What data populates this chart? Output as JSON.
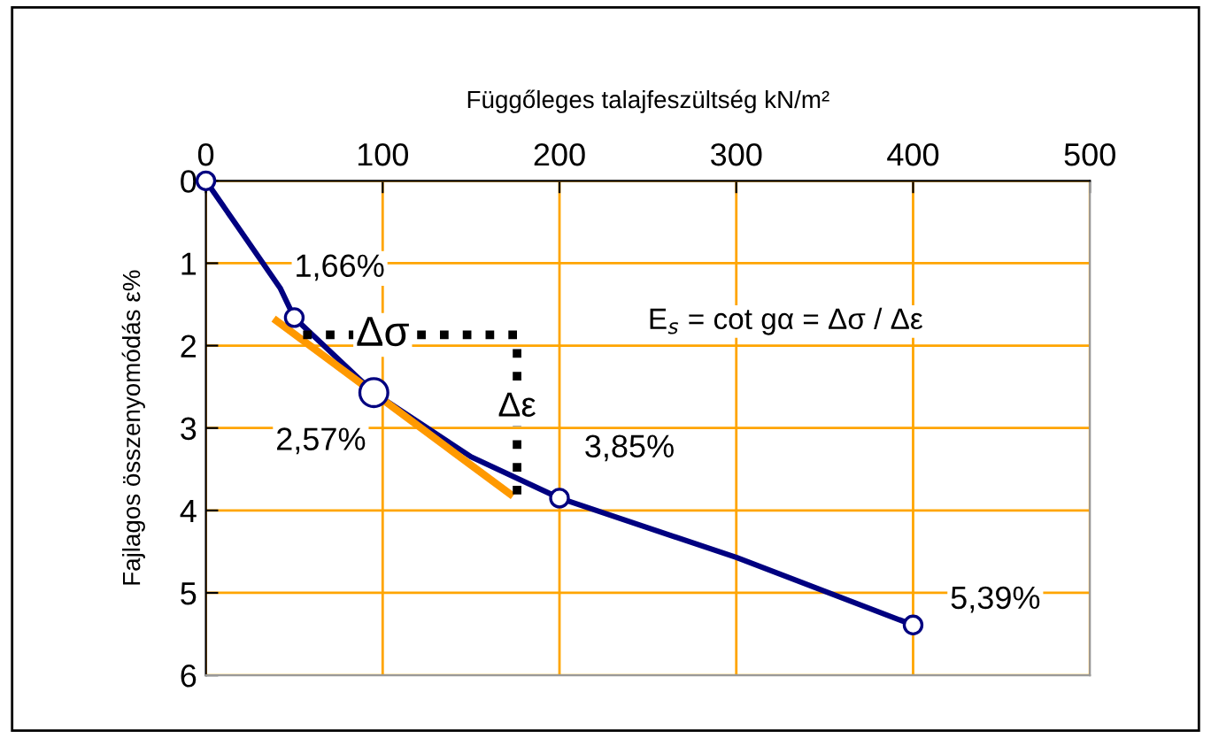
{
  "chart_data": {
    "type": "line",
    "xlabel": "Függőleges talajfeszültség kN/m²",
    "ylabel": "Fajlagos összenyomódás ε%",
    "xlim": [
      0,
      500
    ],
    "xticks": [
      0,
      100,
      200,
      300,
      400,
      500
    ],
    "ylim": [
      6,
      0
    ],
    "yticks": [
      0,
      1,
      2,
      3,
      4,
      5,
      6
    ],
    "grid": true,
    "series": [
      {
        "color": "#000080",
        "marker": "none",
        "line_style": "solid",
        "x": [
          0,
          42,
          50,
          95,
          150,
          200,
          300,
          400
        ],
        "values": [
          0,
          1.3,
          1.66,
          2.57,
          3.35,
          3.85,
          4.57,
          5.39
        ]
      },
      {
        "type": "bubble",
        "color": "#000080",
        "marker": "circle",
        "x": [
          0,
          50,
          95,
          200,
          400
        ],
        "values": [
          0,
          1.66,
          2.57,
          3.85,
          5.39
        ],
        "sizes": [
          0.4,
          0.4,
          1,
          0.4,
          0.4
        ],
        "value_labels": [
          null,
          "1,66%",
          "2,57%",
          "3,85%",
          "5,39%"
        ]
      },
      {
        "type": "line",
        "color": "#ff9900",
        "marker": "none",
        "line_style": "solid",
        "x": [
          40,
          172
        ],
        "values": [
          1.7,
          3.8
        ]
      },
      {
        "type": "line",
        "color": "#000000",
        "marker": "none",
        "line_style": "dotted",
        "x": [
          55,
          176,
          176
        ],
        "values": [
          1.87,
          1.87,
          3.87
        ]
      }
    ],
    "annotations": [
      {
        "text": "Δσ",
        "x": 100,
        "y": 1.87
      },
      {
        "text": "Δε",
        "x": 176,
        "y": 2.75
      },
      "E$_{s}$ = cot gα = Δσ / Δε"
    ]
  }
}
